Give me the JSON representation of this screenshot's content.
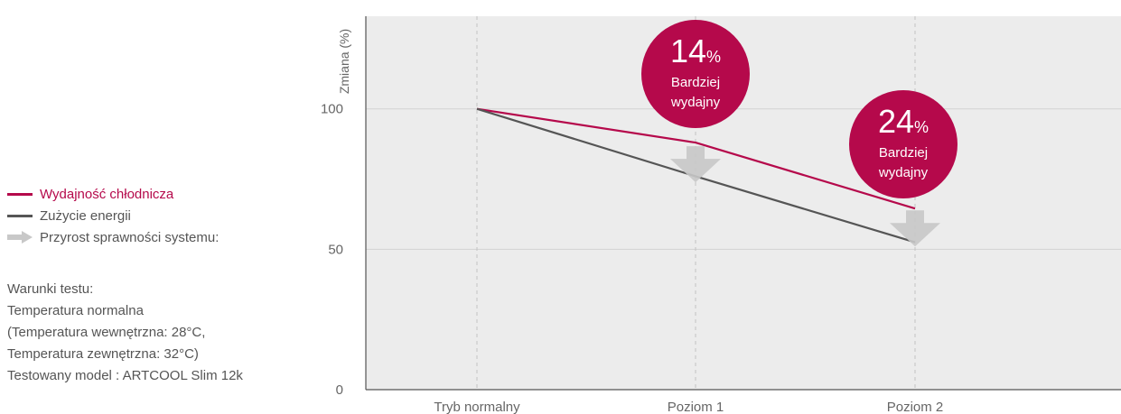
{
  "legend": {
    "items": [
      {
        "label": "Wydajność chłodnicza",
        "color": "#b5094b",
        "kind": "line"
      },
      {
        "label": "Zużycie energii",
        "color": "#555555",
        "kind": "line"
      },
      {
        "label": "Przyrost sprawności systemu:",
        "color": "#c8c8c8",
        "kind": "arrow"
      }
    ]
  },
  "conditions": {
    "lines": [
      "Warunki testu:",
      "Temperatura normalna",
      "(Temperatura wewnętrzna: 28°C,",
      "Temperatura zewnętrzna: 32°C)",
      "Testowany model : ARTCOOL Slim 12k"
    ]
  },
  "colors": {
    "plot_bg": "#ececec",
    "accent": "#b5094b",
    "energy": "#555555",
    "arrow": "#c8c8c8",
    "grid": "#d2d2d2"
  },
  "chart_data": {
    "type": "line",
    "categories": [
      "Tryb normalny",
      "Poziom 1",
      "Poziom 2"
    ],
    "ylabel": "Zmiana (%)",
    "ylim": [
      0,
      133
    ],
    "yticks": [
      0,
      50,
      100
    ],
    "series": [
      {
        "name": "Wydajność chłodnicza",
        "values": [
          100,
          88,
          64.5
        ]
      },
      {
        "name": "Zużycie energii",
        "values": [
          100,
          76,
          52.5
        ]
      }
    ],
    "callouts": [
      {
        "value": "14",
        "unit": "%",
        "line1": "Bardziej",
        "line2": "wydajny",
        "category_index": 1
      },
      {
        "value": "24",
        "unit": "%",
        "line1": "Bardziej",
        "line2": "wydajny",
        "category_index": 2
      }
    ]
  }
}
